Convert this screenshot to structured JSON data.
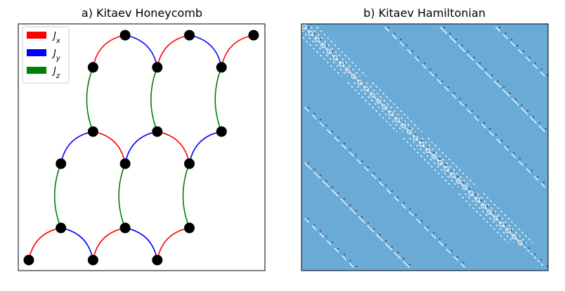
{
  "chart_data": [
    {
      "type": "graph",
      "title": "a) Kitaev Honeycomb",
      "legend": {
        "placement": "top-left",
        "entries": [
          {
            "key": "x",
            "label": "Jx",
            "color": "#ff0000"
          },
          {
            "key": "y",
            "label": "Jy",
            "color": "#0000ff"
          },
          {
            "key": "z",
            "label": "Jz",
            "color": "#008000"
          }
        ]
      },
      "nodes": [
        {
          "id": 0,
          "x": 0,
          "y": 0
        },
        {
          "id": 1,
          "x": 2,
          "y": 0
        },
        {
          "id": 2,
          "x": 4,
          "y": 0
        },
        {
          "id": 3,
          "x": 1,
          "y": 1
        },
        {
          "id": 4,
          "x": 3,
          "y": 1
        },
        {
          "id": 5,
          "x": 5,
          "y": 1
        },
        {
          "id": 6,
          "x": 1,
          "y": 3
        },
        {
          "id": 7,
          "x": 3,
          "y": 3
        },
        {
          "id": 8,
          "x": 5,
          "y": 3
        },
        {
          "id": 9,
          "x": 2,
          "y": 4
        },
        {
          "id": 10,
          "x": 4,
          "y": 4
        },
        {
          "id": 11,
          "x": 6,
          "y": 4
        },
        {
          "id": 12,
          "x": 2,
          "y": 6
        },
        {
          "id": 13,
          "x": 4,
          "y": 6
        },
        {
          "id": 14,
          "x": 6,
          "y": 6
        },
        {
          "id": 15,
          "x": 3,
          "y": 7
        },
        {
          "id": 16,
          "x": 5,
          "y": 7
        },
        {
          "id": 17,
          "x": 7,
          "y": 7
        }
      ],
      "edges": [
        {
          "a": 0,
          "b": 3,
          "type": "x"
        },
        {
          "a": 1,
          "b": 4,
          "type": "x"
        },
        {
          "a": 2,
          "b": 5,
          "type": "x"
        },
        {
          "a": 3,
          "b": 1,
          "type": "y"
        },
        {
          "a": 4,
          "b": 2,
          "type": "y"
        },
        {
          "a": 3,
          "b": 6,
          "type": "z"
        },
        {
          "a": 4,
          "b": 7,
          "type": "z"
        },
        {
          "a": 5,
          "b": 8,
          "type": "z"
        },
        {
          "a": 6,
          "b": 9,
          "type": "y"
        },
        {
          "a": 9,
          "b": 7,
          "type": "x"
        },
        {
          "a": 7,
          "b": 10,
          "type": "y"
        },
        {
          "a": 10,
          "b": 8,
          "type": "x"
        },
        {
          "a": 8,
          "b": 11,
          "type": "y"
        },
        {
          "a": 9,
          "b": 12,
          "type": "z"
        },
        {
          "a": 10,
          "b": 13,
          "type": "z"
        },
        {
          "a": 11,
          "b": 14,
          "type": "z"
        },
        {
          "a": 12,
          "b": 15,
          "type": "x"
        },
        {
          "a": 15,
          "b": 13,
          "type": "y"
        },
        {
          "a": 13,
          "b": 16,
          "type": "x"
        },
        {
          "a": 16,
          "b": 14,
          "type": "y"
        },
        {
          "a": 14,
          "b": 17,
          "type": "x"
        }
      ]
    },
    {
      "type": "heatmap",
      "title": "b) Kitaev Hamiltonian",
      "background_color": "#6aaad6",
      "mark_color": "#ffffff",
      "mark_color_alt": "#0d2b4a",
      "size": 40,
      "diagonal_offsets": [
        -31,
        -22,
        -13,
        0,
        13,
        22,
        31
      ],
      "block_centers": [
        4,
        13,
        22,
        31
      ],
      "block_halfwidth": 4
    }
  ]
}
